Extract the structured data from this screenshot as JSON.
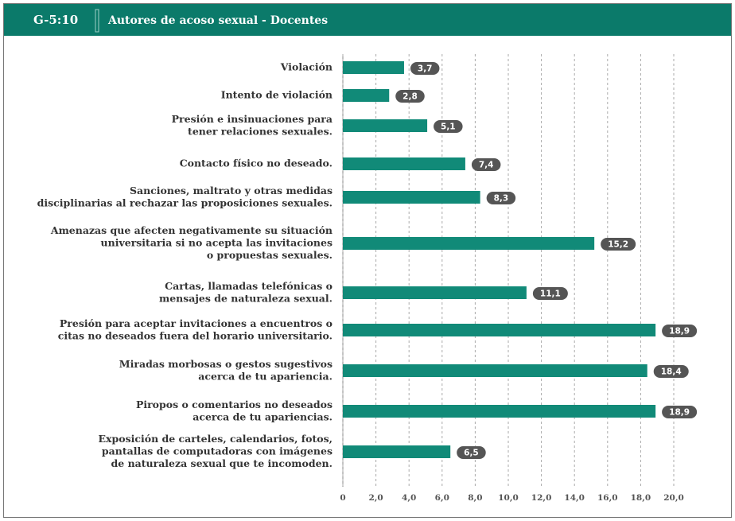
{
  "chart_data": {
    "type": "barh",
    "code": "G-5:10",
    "title": "Autores de acoso sexual - Docentes",
    "categories": [
      [
        "Violación"
      ],
      [
        "Intento de violación"
      ],
      [
        "Presión e insinuaciones para",
        "tener relaciones sexuales."
      ],
      [
        "Contacto físico no deseado."
      ],
      [
        "Sanciones, maltrato y otras medidas",
        "disciplinarias al rechazar las proposiciones sexuales."
      ],
      [
        "Amenazas que afecten negativamente su situación",
        "universitaria si no acepta las invitaciones",
        "o propuestas sexuales."
      ],
      [
        "Cartas, llamadas telefónicas o",
        "mensajes de naturaleza sexual."
      ],
      [
        "Presión para aceptar invitaciones a encuentros o",
        "citas no deseados fuera del horario universitario."
      ],
      [
        "Miradas morbosas o gestos sugestivos",
        "acerca de tu apariencia."
      ],
      [
        "Piropos o comentarios no deseados",
        "acerca de tu apariencias."
      ],
      [
        "Exposición de carteles, calendarios, fotos,",
        "pantallas de computadoras con imágenes",
        "de naturaleza sexual que te incomoden."
      ]
    ],
    "values": [
      3.7,
      2.8,
      5.1,
      7.4,
      8.3,
      15.2,
      11.1,
      18.9,
      18.4,
      18.9,
      6.5
    ],
    "value_labels": [
      "3,7",
      "2,8",
      "5,1",
      "7,4",
      "8,3",
      "15,2",
      "11,1",
      "18,9",
      "18,4",
      "18,9",
      "6,5"
    ],
    "color": "#118a78",
    "xlim": [
      0,
      20.8
    ],
    "xticks": [
      0,
      {
        "value": 2,
        "label": "2,0"
      },
      {
        "value": 4,
        "label": "4,0"
      },
      {
        "value": 6,
        "label": "6,0"
      },
      {
        "value": 8,
        "label": "8,0"
      },
      {
        "value": 10,
        "label": "10,0"
      },
      {
        "value": 12,
        "label": "12,0"
      },
      {
        "value": 14,
        "label": "14,0"
      },
      {
        "value": 16,
        "label": "16,0"
      },
      {
        "value": 18,
        "label": "18,0"
      },
      {
        "value": 20,
        "label": "20,0"
      }
    ],
    "grid": true
  }
}
